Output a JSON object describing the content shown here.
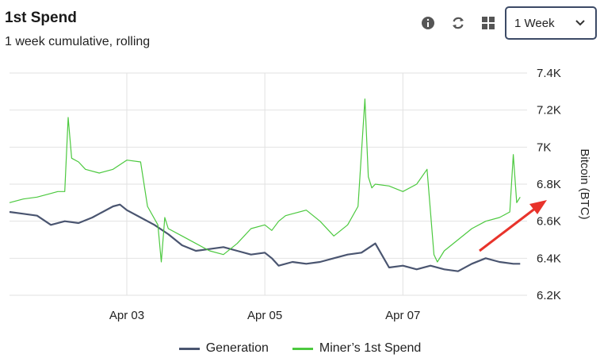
{
  "header": {
    "title": "1st Spend",
    "subtitle": "1 week cumulative, rolling"
  },
  "toolbar": {
    "icons": [
      "info-icon",
      "refresh-icon",
      "grid-icon"
    ],
    "range_select": "1 Week"
  },
  "colors": {
    "generation": "#4a5570",
    "spend": "#4cc93f",
    "grid": "#e2e2e2",
    "arrow": "#e8332b"
  },
  "chart_data": {
    "type": "line",
    "ylabel": "Bitcoin (BTC)",
    "ylim": [
      6200,
      7400
    ],
    "y_ticks": [
      "6.2K",
      "6.4K",
      "6.6K",
      "6.8K",
      "7K",
      "7.2K",
      "7.4K"
    ],
    "y_tick_values": [
      6200,
      6400,
      6600,
      6800,
      7000,
      7200,
      7400
    ],
    "xlim": [
      1.3,
      8.8
    ],
    "x_ticks": [
      "Apr 03",
      "Apr 05",
      "Apr 07"
    ],
    "x_tick_values": [
      3,
      5,
      7
    ],
    "legend_position": "bottom",
    "series": [
      {
        "name": "Generation",
        "x": [
          1.3,
          1.5,
          1.7,
          1.9,
          2.1,
          2.3,
          2.5,
          2.6,
          2.8,
          2.9,
          3.0,
          3.2,
          3.4,
          3.6,
          3.8,
          4.0,
          4.2,
          4.4,
          4.6,
          4.8,
          5.0,
          5.1,
          5.2,
          5.4,
          5.6,
          5.8,
          6.0,
          6.2,
          6.4,
          6.6,
          6.8,
          7.0,
          7.2,
          7.4,
          7.6,
          7.8,
          8.0,
          8.2,
          8.4,
          8.6,
          8.7
        ],
        "values": [
          6650,
          6640,
          6630,
          6580,
          6600,
          6590,
          6620,
          6640,
          6680,
          6690,
          6660,
          6620,
          6580,
          6530,
          6470,
          6440,
          6450,
          6460,
          6440,
          6420,
          6430,
          6400,
          6360,
          6380,
          6370,
          6380,
          6400,
          6420,
          6430,
          6480,
          6350,
          6360,
          6340,
          6360,
          6340,
          6330,
          6370,
          6400,
          6380,
          6370,
          6370
        ]
      },
      {
        "name": "Miner’s 1st Spend",
        "x": [
          1.3,
          1.5,
          1.7,
          1.9,
          2.0,
          2.1,
          2.15,
          2.2,
          2.3,
          2.4,
          2.6,
          2.8,
          3.0,
          3.2,
          3.3,
          3.45,
          3.5,
          3.55,
          3.6,
          3.8,
          4.0,
          4.2,
          4.4,
          4.6,
          4.8,
          5.0,
          5.1,
          5.2,
          5.3,
          5.4,
          5.6,
          5.8,
          6.0,
          6.2,
          6.35,
          6.45,
          6.5,
          6.55,
          6.6,
          6.8,
          7.0,
          7.2,
          7.35,
          7.45,
          7.5,
          7.6,
          7.8,
          8.0,
          8.2,
          8.4,
          8.55,
          8.6,
          8.65,
          8.7
        ],
        "values": [
          6700,
          6720,
          6730,
          6750,
          6760,
          6760,
          7160,
          6940,
          6920,
          6880,
          6860,
          6880,
          6930,
          6920,
          6680,
          6580,
          6380,
          6620,
          6560,
          6520,
          6480,
          6440,
          6420,
          6480,
          6560,
          6580,
          6550,
          6600,
          6630,
          6640,
          6660,
          6600,
          6520,
          6580,
          6680,
          7260,
          6840,
          6780,
          6800,
          6790,
          6760,
          6800,
          6880,
          6420,
          6380,
          6440,
          6500,
          6560,
          6600,
          6620,
          6650,
          6960,
          6700,
          6730
        ]
      }
    ]
  }
}
